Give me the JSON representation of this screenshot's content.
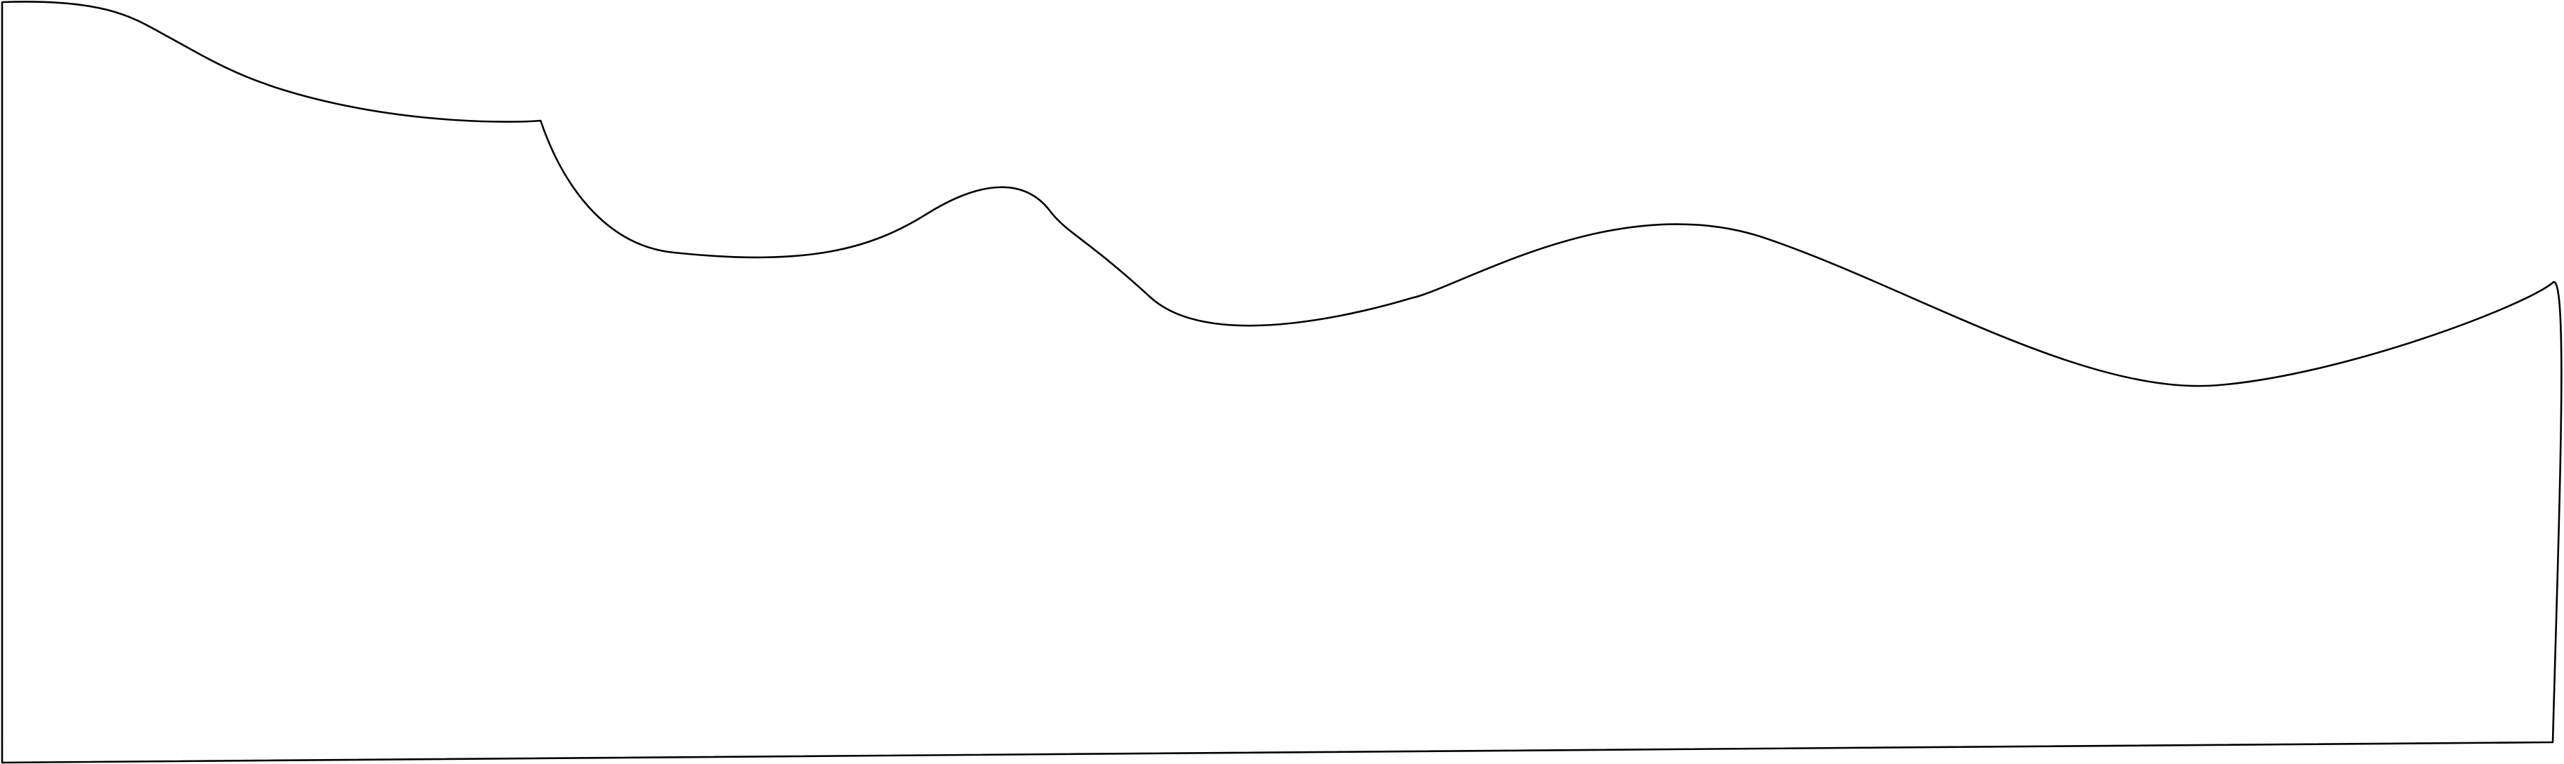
{
  "figure": {
    "kind": "outline-shape",
    "description_visible_text": "",
    "stroke_color": "#000000",
    "fill_color": "#ffffff",
    "background_color": "#ffffff"
  }
}
